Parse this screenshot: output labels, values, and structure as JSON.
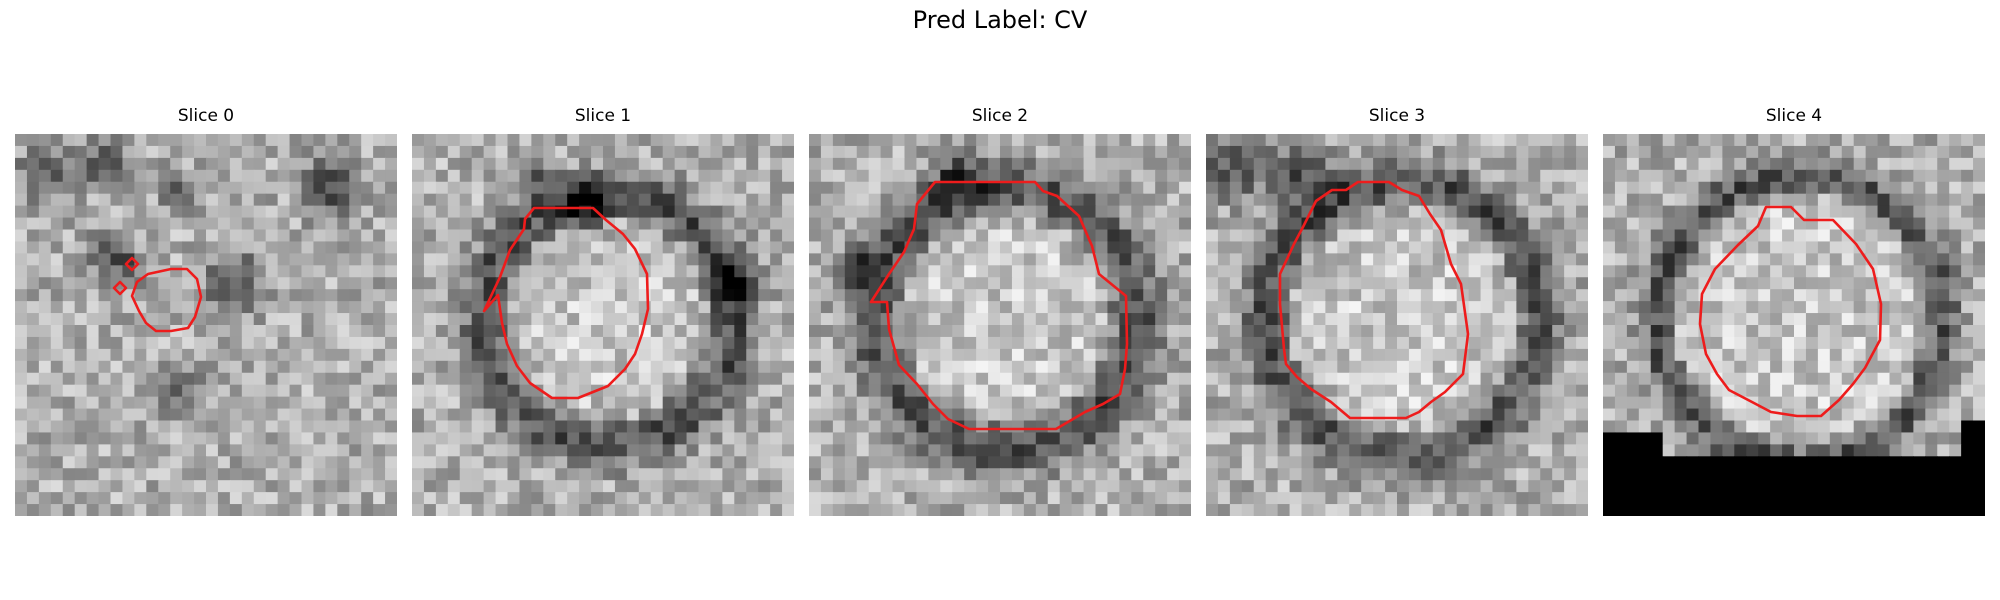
{
  "figure": {
    "title": "Pred Label: CV"
  },
  "panels": [
    {
      "title": "Slice 0",
      "seed": 11,
      "dark_blobs": [
        [
          2,
          3,
          2.2
        ],
        [
          7,
          2,
          2.0
        ],
        [
          9,
          11,
          1.5
        ],
        [
          13,
          4,
          1.5
        ],
        [
          7,
          9,
          1.8
        ],
        [
          18,
          12,
          2.5
        ],
        [
          26,
          4,
          2.5
        ],
        [
          13,
          21,
          2.0
        ]
      ],
      "black_mask": null
    },
    {
      "title": "Slice 1",
      "seed": 23,
      "ring": [
        16,
        15,
        10.5,
        2.0
      ],
      "dark_blobs": [
        [
          14,
          6,
          2.0
        ],
        [
          10,
          3,
          1.5
        ],
        [
          26,
          12,
          2.0
        ]
      ],
      "black_mask": null
    },
    {
      "title": "Slice 2",
      "seed": 37,
      "ring": [
        16,
        15,
        11.0,
        2.2
      ],
      "dark_blobs": [
        [
          12,
          3,
          2.0
        ],
        [
          4,
          11,
          2.0
        ]
      ],
      "black_mask": null
    },
    {
      "title": "Slice 3",
      "seed": 51,
      "ring": [
        16,
        15,
        11.5,
        2.0
      ],
      "dark_blobs": [
        [
          2,
          2,
          3.0
        ],
        [
          8,
          3,
          2.5
        ]
      ],
      "black_mask": null
    },
    {
      "title": "Slice 4",
      "seed": 67,
      "ring": [
        16,
        15,
        12.0,
        1.5
      ],
      "dark_blobs": [],
      "black_mask": true
    }
  ]
}
